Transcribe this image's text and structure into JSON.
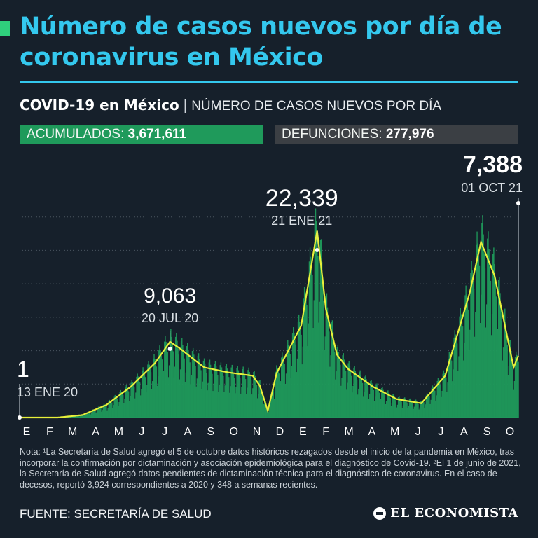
{
  "header": {
    "title": "Número de casos nuevos por día de coronavirus en México",
    "subtitle_bold": "COVID-19 en México",
    "subtitle_sep": "|",
    "subtitle_rest": "NÚMERO DE CASOS NUEVOS POR DÍA"
  },
  "stats": {
    "acumulados_label": "ACUMULADOS:",
    "acumulados_value": "3,671,611",
    "defunciones_label": "DEFUNCIONES:",
    "defunciones_value": "277,976"
  },
  "colors": {
    "background": "#16202b",
    "title": "#34c8ee",
    "bars": "#1f9a5b",
    "curve": "#e8f03a",
    "grid": "#4a5560"
  },
  "chart_data": {
    "type": "bar",
    "title": "",
    "xlabel": "",
    "ylabel": "",
    "x_tick_labels": [
      "E",
      "F",
      "M",
      "A",
      "M",
      "J",
      "J",
      "A",
      "S",
      "O",
      "N",
      "D",
      "E",
      "F",
      "M",
      "A",
      "M",
      "J",
      "J",
      "A",
      "S",
      "O"
    ],
    "ylim": [
      0,
      28000
    ],
    "grid": true,
    "series": [
      {
        "type": "line",
        "note": "7-day average curve",
        "x": [
          "13 ENE 20",
          "01 FEB 20",
          "01 MAR 20",
          "01 ABR 20",
          "01 MAY 20",
          "01 JUN 20",
          "01 JUL 20",
          "20 JUL 20",
          "01 AGO 20",
          "01 SEP 20",
          "01 OCT 20",
          "01 NOV 20",
          "10 NOV 20",
          "20 NOV 20",
          "01 DIC 20",
          "01 ENE 21",
          "21 ENE 21",
          "01 FEB 21",
          "15 FEB 21",
          "01 MAR 21",
          "01 ABR 21",
          "01 MAY 21",
          "01 JUN 21",
          "01 JUL 21",
          "01 AGO 21",
          "15 AGO 21",
          "01 SEP 21",
          "25 SEP 21",
          "01 OCT 21"
        ],
        "values": [
          0,
          0,
          0,
          300,
          1500,
          3700,
          6500,
          9063,
          8300,
          6000,
          5400,
          5000,
          3800,
          800,
          5300,
          11000,
          22339,
          13000,
          7500,
          5800,
          3700,
          2200,
          1700,
          5000,
          15000,
          21000,
          17000,
          6000,
          7388
        ]
      }
    ],
    "annotations": [
      {
        "label": "1",
        "date": "13 ENE 20"
      },
      {
        "label": "9,063",
        "date": "20 JUL 20"
      },
      {
        "label": "22,339",
        "date": "21 ENE 21"
      },
      {
        "label": "7,388",
        "date": "01 OCT 21"
      }
    ]
  },
  "footer": {
    "note": "Nota: ¹La Secretaría de Salud agregó el 5 de octubre datos históricos rezagados desde el inicio de la pandemia en México, tras incorporar la confirmación por dictaminación y asociación epidemiológica para el diagnóstico de Covid-19. ²El 1 de junio de 2021, la Secretaría de Salud agregó datos pendientes de dictaminación técnica para el diagnóstico de coronavirus. En el caso de decesos, reportó 3,924 correspondientes a 2020 y 348 a semanas recientes.",
    "source": "FUENTE: SECRETARÍA DE SALUD",
    "logo": "EL ECONOMISTA",
    "logo_icon": "el-economista-logo-icon"
  }
}
